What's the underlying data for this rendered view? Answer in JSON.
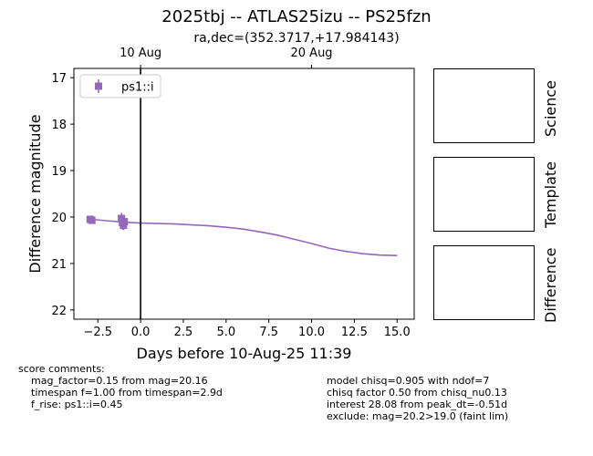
{
  "title": "2025tbj -- ATLAS25izu -- PS25fzn",
  "subtitle": "ra,dec=(352.3717,+17.984143)",
  "chart_data": {
    "type": "scatter",
    "xlabel": "Days before 10-Aug-25 11:39",
    "ylabel": "Difference magnitude",
    "xlim": [
      -3.9,
      16.0
    ],
    "ylim": [
      22.2,
      16.8
    ],
    "y_inverted": true,
    "xticks": [
      -2.5,
      0.0,
      2.5,
      5.0,
      7.5,
      10.0,
      12.5,
      15.0
    ],
    "xtick_labels": [
      "−2.5",
      "0.0",
      "2.5",
      "5.0",
      "7.5",
      "10.0",
      "12.5",
      "15.0"
    ],
    "yticks": [
      17,
      18,
      19,
      20,
      21,
      22
    ],
    "ytick_labels": [
      "17",
      "18",
      "19",
      "20",
      "21",
      "22"
    ],
    "top_axis": {
      "ticks": [
        0.0,
        10.0
      ],
      "labels": [
        "10 Aug",
        "20 Aug"
      ]
    },
    "vertical_line_x": 0.0,
    "legend": {
      "placement": "top-left",
      "entries": [
        "ps1::i"
      ]
    },
    "series": [
      {
        "name": "ps1::i",
        "color": "#9467bd",
        "points": [
          {
            "x": -2.95,
            "y": 20.05,
            "err": 0.08
          },
          {
            "x": -2.85,
            "y": 20.07,
            "err": 0.08
          },
          {
            "x": -1.12,
            "y": 20.03,
            "err": 0.12
          },
          {
            "x": -1.06,
            "y": 20.12,
            "err": 0.15
          },
          {
            "x": -1.0,
            "y": 20.18,
            "err": 0.1
          },
          {
            "x": -0.95,
            "y": 20.1,
            "err": 0.12
          }
        ]
      }
    ],
    "model_curve": {
      "color": "#9467bd",
      "x": [
        -2.9,
        -2.0,
        -1.0,
        0.0,
        1.0,
        2.0,
        3.0,
        4.0,
        5.0,
        6.0,
        7.0,
        8.0,
        9.0,
        10.0,
        11.0,
        12.0,
        13.0,
        14.0,
        15.0
      ],
      "y": [
        20.05,
        20.08,
        20.11,
        20.13,
        20.14,
        20.15,
        20.17,
        20.19,
        20.22,
        20.26,
        20.32,
        20.39,
        20.48,
        20.57,
        20.67,
        20.74,
        20.79,
        20.82,
        20.83
      ]
    }
  },
  "cutouts": [
    "Science",
    "Template",
    "Difference"
  ],
  "score_comments": {
    "header": "score comments:",
    "lines": [
      "mag_factor=0.15 from mag=20.16",
      "timespan f=1.00 from timespan=2.9d",
      "f_rise: ps1::i=0.45"
    ]
  },
  "model_comments": [
    "model chisq=0.905 with ndof=7",
    "chisq factor 0.50 from chisq_nu0.13",
    "interest 28.08 from peak_dt=-0.51d",
    "exclude: mag=20.2>19.0 (faint lim)"
  ]
}
